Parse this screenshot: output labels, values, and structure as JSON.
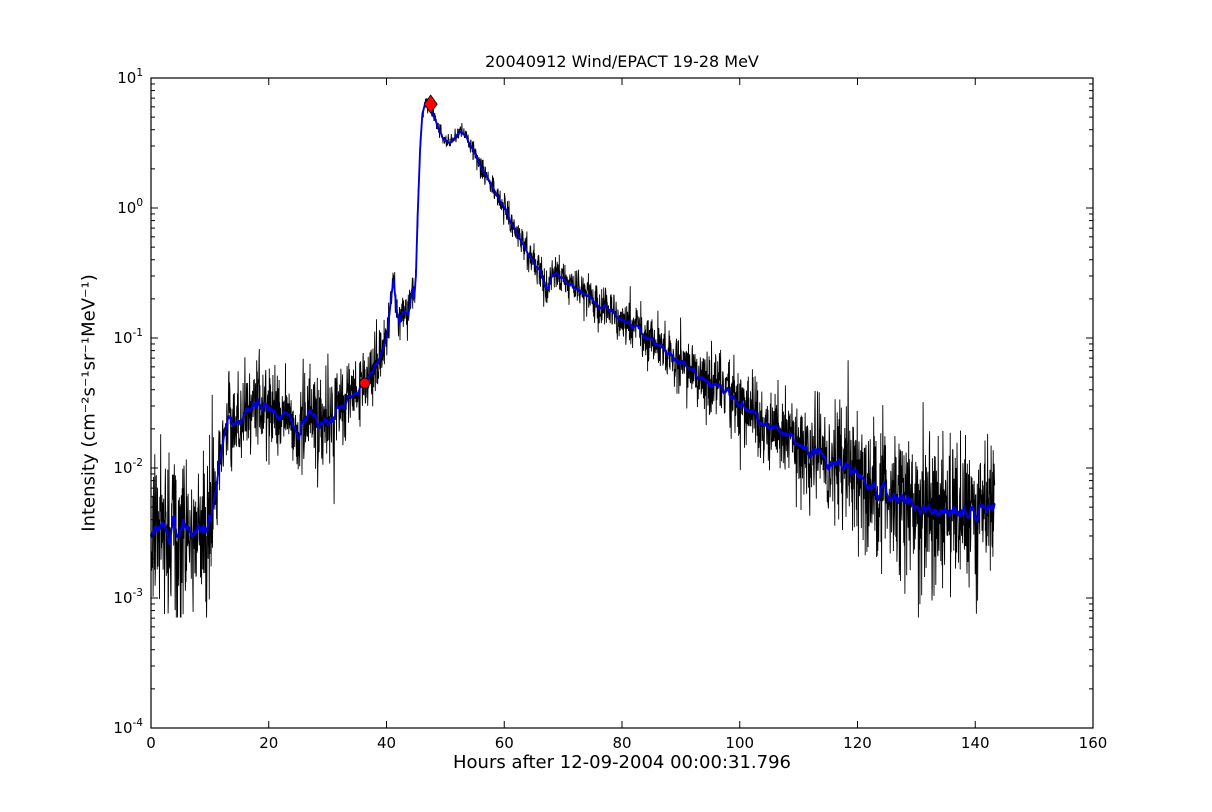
{
  "figure": {
    "background": "#ffffff",
    "frame_color": "#000000"
  },
  "chart_data": {
    "type": "line",
    "title": "20040912 Wind/EPACT 19-28 MeV",
    "xlabel": "Hours after 12-09-2004 00:00:31.796",
    "ylabel": "Intensity (cm⁻²s⁻¹sr⁻¹MeV⁻¹)",
    "xlim": [
      0,
      160
    ],
    "ylim": [
      0.0001,
      10
    ],
    "yscale": "log",
    "grid": false,
    "legend": null,
    "xticks": [
      0,
      20,
      40,
      60,
      80,
      100,
      120,
      140,
      160
    ],
    "ytick_exponents": [
      -4,
      -3,
      -2,
      -1,
      0,
      1
    ],
    "x_data_range": [
      0,
      143.3
    ],
    "series": [
      {
        "name": "raw-1min-intensity",
        "color": "#000000",
        "style": "noisy-line",
        "linewidth": 0.9
      },
      {
        "name": "smoothed-intensity",
        "color": "#0000dd",
        "style": "line",
        "linewidth": 1.9
      }
    ],
    "noise_model": {
      "sigma_log_coeff": 0.05,
      "sigma_log_power": -0.32,
      "sigma_min": 0.032,
      "sigma_max": 0.42,
      "dropout_threshold": 0.012,
      "dropout_prob": 0.05,
      "floor_log": -3.15,
      "ceil_log": 0.97
    },
    "smoothed_points": [
      [
        0,
        0.0035
      ],
      [
        1,
        0.0032
      ],
      [
        2,
        0.0038
      ],
      [
        3,
        0.003
      ],
      [
        4,
        0.0036
      ],
      [
        5,
        0.0033
      ],
      [
        6,
        0.004
      ],
      [
        7,
        0.0032
      ],
      [
        8,
        0.0037
      ],
      [
        9,
        0.0034
      ],
      [
        10,
        0.0042
      ],
      [
        10.6,
        0.005
      ],
      [
        11.2,
        0.008
      ],
      [
        12,
        0.014
      ],
      [
        12.8,
        0.021
      ],
      [
        13.5,
        0.024
      ],
      [
        14.5,
        0.022
      ],
      [
        15.5,
        0.024
      ],
      [
        16.5,
        0.028
      ],
      [
        17.5,
        0.03
      ],
      [
        18.5,
        0.029
      ],
      [
        19.5,
        0.031
      ],
      [
        20.5,
        0.028
      ],
      [
        21.5,
        0.024
      ],
      [
        22.5,
        0.027
      ],
      [
        23.5,
        0.025
      ],
      [
        24.5,
        0.021
      ],
      [
        25.2,
        0.017
      ],
      [
        26,
        0.024
      ],
      [
        27,
        0.027
      ],
      [
        27.8,
        0.025
      ],
      [
        28.6,
        0.021
      ],
      [
        29.4,
        0.024
      ],
      [
        30.2,
        0.02
      ],
      [
        31,
        0.025
      ],
      [
        32,
        0.028
      ],
      [
        33,
        0.031
      ],
      [
        34,
        0.034
      ],
      [
        35,
        0.038
      ],
      [
        36.3,
        0.045
      ],
      [
        37,
        0.05
      ],
      [
        38,
        0.06
      ],
      [
        39,
        0.075
      ],
      [
        40,
        0.1
      ],
      [
        40.8,
        0.2
      ],
      [
        41.2,
        0.28
      ],
      [
        41.7,
        0.17
      ],
      [
        42.2,
        0.125
      ],
      [
        42.7,
        0.155
      ],
      [
        43.2,
        0.16
      ],
      [
        43.7,
        0.15
      ],
      [
        44.1,
        0.19
      ],
      [
        44.4,
        0.24
      ],
      [
        44.7,
        0.2
      ],
      [
        45.0,
        0.3
      ],
      [
        45.3,
        0.9
      ],
      [
        45.7,
        2.8
      ],
      [
        46.1,
        5.3
      ],
      [
        46.6,
        6.4
      ],
      [
        47.1,
        6.15
      ],
      [
        47.6,
        5.7
      ],
      [
        48.2,
        4.9
      ],
      [
        49,
        3.9
      ],
      [
        49.6,
        3.4
      ],
      [
        50.2,
        3.25
      ],
      [
        50.8,
        3.1
      ],
      [
        51.4,
        3.4
      ],
      [
        52,
        3.7
      ],
      [
        52.6,
        3.8
      ],
      [
        53.2,
        3.65
      ],
      [
        54,
        3.2
      ],
      [
        55,
        2.6
      ],
      [
        56,
        2.1
      ],
      [
        57,
        1.75
      ],
      [
        58,
        1.45
      ],
      [
        59,
        1.2
      ],
      [
        60,
        1.0
      ],
      [
        61,
        0.82
      ],
      [
        62,
        0.66
      ],
      [
        63,
        0.53
      ],
      [
        64,
        0.45
      ],
      [
        65,
        0.385
      ],
      [
        66,
        0.33
      ],
      [
        66.8,
        0.27
      ],
      [
        67.4,
        0.245
      ],
      [
        68.3,
        0.3
      ],
      [
        68.9,
        0.315
      ],
      [
        69.5,
        0.3
      ],
      [
        70.4,
        0.27
      ],
      [
        71.4,
        0.25
      ],
      [
        72.4,
        0.232
      ],
      [
        73.4,
        0.215
      ],
      [
        74.5,
        0.2
      ],
      [
        76,
        0.185
      ],
      [
        77.5,
        0.168
      ],
      [
        79,
        0.152
      ],
      [
        80.5,
        0.138
      ],
      [
        82,
        0.121
      ],
      [
        84,
        0.103
      ],
      [
        86,
        0.089
      ],
      [
        88,
        0.076
      ],
      [
        90,
        0.065
      ],
      [
        92,
        0.056
      ],
      [
        94,
        0.048
      ],
      [
        96,
        0.042
      ],
      [
        98,
        0.036
      ],
      [
        100,
        0.031
      ],
      [
        102,
        0.027
      ],
      [
        104,
        0.0235
      ],
      [
        106,
        0.0205
      ],
      [
        108,
        0.018
      ],
      [
        110,
        0.0158
      ],
      [
        112,
        0.0139
      ],
      [
        114,
        0.0123
      ],
      [
        116,
        0.0108
      ],
      [
        118,
        0.0096
      ],
      [
        120,
        0.0085
      ],
      [
        122,
        0.0076
      ],
      [
        124,
        0.0068
      ],
      [
        126,
        0.0061
      ],
      [
        128,
        0.0055
      ],
      [
        130,
        0.0051
      ],
      [
        132,
        0.0048
      ],
      [
        134,
        0.0046
      ],
      [
        136,
        0.0045
      ],
      [
        138,
        0.0047
      ],
      [
        140,
        0.0044
      ],
      [
        141.5,
        0.005
      ],
      [
        143.3,
        0.0046
      ]
    ],
    "markers": [
      {
        "shape": "circle",
        "color": "#ff0000",
        "edge_color": "#000000",
        "x": 36.3,
        "y": 0.045
      },
      {
        "shape": "diamond",
        "color": "#ff0000",
        "edge_color": "#000000",
        "x": 47.5,
        "y": 6.3
      }
    ]
  }
}
